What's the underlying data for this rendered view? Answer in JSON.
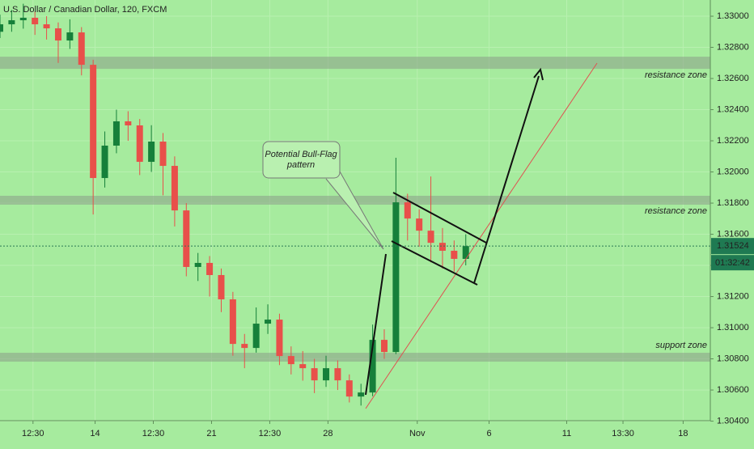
{
  "chart_data": {
    "type": "candlestick",
    "title": "U.S. Dollar / Canadian Dollar, 120, FXCM",
    "x": [
      0,
      6,
      12,
      18,
      24,
      30,
      36,
      42,
      48,
      54,
      60,
      66,
      72,
      78,
      84,
      90,
      96,
      102,
      108,
      114,
      120,
      126,
      132,
      138,
      144,
      150,
      156,
      162,
      168,
      174,
      180,
      186,
      192,
      198,
      204,
      210,
      216,
      222,
      228,
      234,
      240
    ],
    "open": [
      1.329,
      1.32948,
      1.32974,
      1.3299,
      1.32948,
      1.32922,
      1.32844,
      1.32896,
      1.32688,
      1.31961,
      1.32169,
      1.32325,
      1.32299,
      1.32065,
      1.32195,
      1.32039,
      1.31753,
      1.3139,
      1.31416,
      1.31338,
      1.31182,
      1.30896,
      1.3087,
      1.31026,
      1.31052,
      1.30818,
      1.30766,
      1.3074,
      1.30662,
      1.3074,
      1.30662,
      1.30558,
      1.30584,
      1.30922,
      1.30844,
      1.31805,
      1.31701,
      1.31623,
      1.31545,
      1.31494,
      1.31442
    ],
    "high": [
      1.3301,
      1.3304,
      1.3308,
      1.3303,
      1.33,
      1.3296,
      1.3298,
      1.3293,
      1.3272,
      1.3226,
      1.324,
      1.3239,
      1.3234,
      1.323,
      1.3225,
      1.321,
      1.318,
      1.3148,
      1.3146,
      1.3138,
      1.3123,
      1.3096,
      1.3113,
      1.3115,
      1.3109,
      1.3088,
      1.3085,
      1.308,
      1.3082,
      1.3079,
      1.307,
      1.3064,
      1.3102,
      1.3099,
      1.32091,
      1.3186,
      1.3176,
      1.31971,
      1.3164,
      1.3156,
      1.316
    ],
    "low": [
      1.3286,
      1.329,
      1.3292,
      1.3288,
      1.3285,
      1.327,
      1.3279,
      1.3262,
      1.31727,
      1.319,
      1.3212,
      1.322,
      1.3198,
      1.32,
      1.3185,
      1.3165,
      1.3133,
      1.313,
      1.312,
      1.311,
      1.3082,
      1.3074,
      1.3084,
      1.3096,
      1.3076,
      1.307,
      1.3066,
      1.3058,
      1.3062,
      1.306,
      1.3052,
      1.305,
      1.3056,
      1.308,
      1.3083,
      1.3156,
      1.3152,
      1.3142,
      1.3138,
      1.3136,
      1.314
    ],
    "close": [
      1.32948,
      1.32974,
      1.3299,
      1.32948,
      1.32922,
      1.32844,
      1.32896,
      1.32688,
      1.31961,
      1.32169,
      1.32325,
      1.32299,
      1.32065,
      1.32195,
      1.32039,
      1.31753,
      1.3139,
      1.31416,
      1.31338,
      1.31182,
      1.30896,
      1.3087,
      1.31026,
      1.31052,
      1.30818,
      1.30766,
      1.3074,
      1.30662,
      1.3074,
      1.30662,
      1.30558,
      1.30584,
      1.30922,
      1.30844,
      1.31805,
      1.31701,
      1.31623,
      1.31545,
      1.31494,
      1.31442,
      1.31524
    ],
    "up_color": "#16803a",
    "down_color": "#e8504a",
    "xlim": [
      0,
      366
    ],
    "xticks": [
      {
        "value": 17,
        "label": "12:30"
      },
      {
        "value": 49,
        "label": "14"
      },
      {
        "value": 79,
        "label": "12:30"
      },
      {
        "value": 109,
        "label": "21"
      },
      {
        "value": 139,
        "label": "12:30"
      },
      {
        "value": 169,
        "label": "28"
      },
      {
        "value": 215,
        "label": "Nov"
      },
      {
        "value": 252,
        "label": "6"
      },
      {
        "value": 292,
        "label": "11"
      },
      {
        "value": 321,
        "label": "13:30"
      },
      {
        "value": 352,
        "label": "18"
      }
    ],
    "ylim": [
      1.30403,
      1.33104
    ],
    "yticks": [
      {
        "value": 1.33,
        "label": "1.33000"
      },
      {
        "value": 1.328,
        "label": "1.32800"
      },
      {
        "value": 1.326,
        "label": "1.32600"
      },
      {
        "value": 1.324,
        "label": "1.32400"
      },
      {
        "value": 1.322,
        "label": "1.32200"
      },
      {
        "value": 1.32,
        "label": "1.32000"
      },
      {
        "value": 1.318,
        "label": "1.31800"
      },
      {
        "value": 1.316,
        "label": "1.31600"
      },
      {
        "value": 1.314,
        "label": "1.31400"
      },
      {
        "value": 1.312,
        "label": "1.31200"
      },
      {
        "value": 1.31,
        "label": "1.31000"
      },
      {
        "value": 1.308,
        "label": "1.30800"
      },
      {
        "value": 1.306,
        "label": "1.30600"
      },
      {
        "value": 1.304,
        "label": "1.30400"
      }
    ],
    "grid": true,
    "last_price": 1.31524,
    "countdown": "01:32:42",
    "zones": [
      {
        "label": "resistance zone",
        "range": [
          1.32662,
          1.3274
        ]
      },
      {
        "label": "resistance zone",
        "range": [
          1.3179,
          1.31847
        ]
      },
      {
        "label": "support zone",
        "range": [
          1.30782,
          1.30839
        ]
      }
    ],
    "callout": [
      "Potential Bull-Flag",
      "pattern"
    ]
  }
}
